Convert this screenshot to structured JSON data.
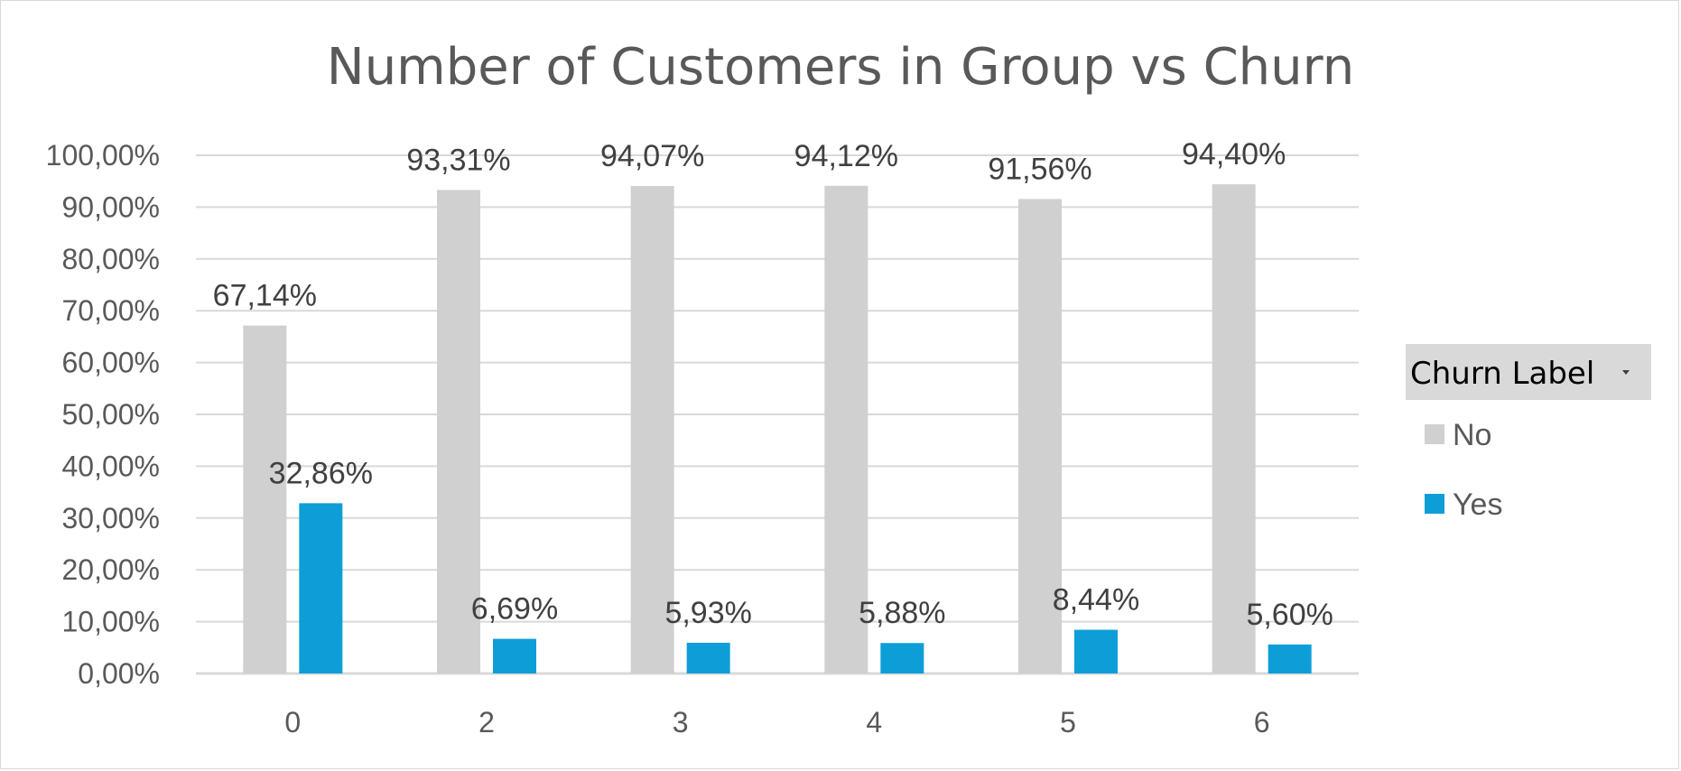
{
  "chart_data": {
    "type": "bar",
    "title": "Number of Customers in Group vs Churn",
    "categories": [
      "0",
      "2",
      "3",
      "4",
      "5",
      "6"
    ],
    "series": [
      {
        "name": "No",
        "color": "#d0d0d0",
        "values": [
          67.14,
          93.31,
          94.07,
          94.12,
          91.56,
          94.4
        ],
        "labels": [
          "67,14%",
          "93,31%",
          "94,07%",
          "94,12%",
          "91,56%",
          "94,40%"
        ]
      },
      {
        "name": "Yes",
        "color": "#0d9ed8",
        "values": [
          32.86,
          6.69,
          5.93,
          5.88,
          8.44,
          5.6
        ],
        "labels": [
          "32,86%",
          "6,69%",
          "5,93%",
          "5,88%",
          "8,44%",
          "5,60%"
        ]
      }
    ],
    "ylim": [
      0,
      100
    ],
    "yticks": [
      "0,00%",
      "10,00%",
      "20,00%",
      "30,00%",
      "40,00%",
      "50,00%",
      "60,00%",
      "70,00%",
      "80,00%",
      "90,00%",
      "100,00%"
    ],
    "grid": true,
    "legend": {
      "title": "Churn Label",
      "position": "right",
      "entries": [
        "No",
        "Yes"
      ]
    }
  }
}
